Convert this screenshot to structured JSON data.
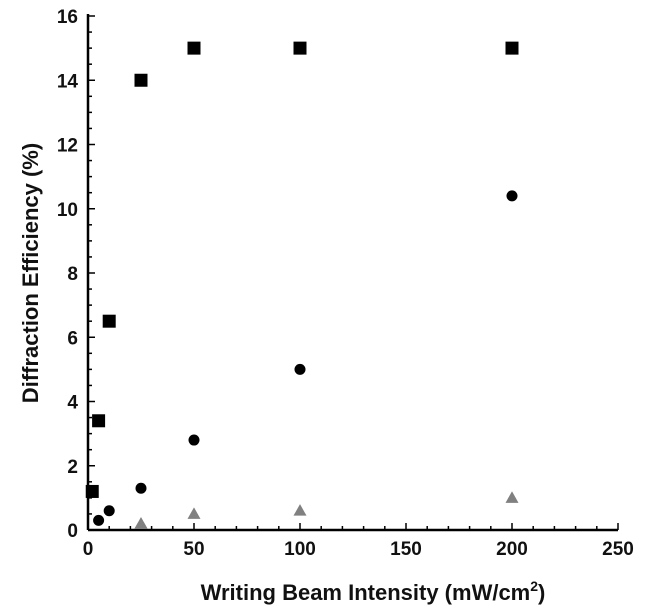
{
  "chart_data": {
    "type": "scatter",
    "xlabel": "Writing Beam Intensity (mW/cm",
    "xlabel_sup": "2",
    "xlabel_close": ")",
    "ylabel": "Diffraction Efficiency (%)",
    "xlim": [
      0,
      250
    ],
    "ylim": [
      0,
      16
    ],
    "x_ticks": [
      "0",
      "50",
      "100",
      "150",
      "200",
      "250"
    ],
    "y_ticks": [
      "0",
      "2",
      "4",
      "6",
      "8",
      "10",
      "12",
      "14",
      "16"
    ],
    "grid": false,
    "legend": "none",
    "series": [
      {
        "marker": "square",
        "color": "#000000",
        "points": [
          [
            2,
            1.2
          ],
          [
            5,
            3.4
          ],
          [
            10,
            6.5
          ],
          [
            25,
            14.0
          ],
          [
            50,
            15.0
          ],
          [
            100,
            15.0
          ],
          [
            200,
            15.0
          ]
        ]
      },
      {
        "marker": "circle",
        "color": "#000000",
        "points": [
          [
            5,
            0.3
          ],
          [
            10,
            0.6
          ],
          [
            25,
            1.3
          ],
          [
            50,
            2.8
          ],
          [
            100,
            5.0
          ],
          [
            200,
            10.4
          ]
        ]
      },
      {
        "marker": "triangle",
        "color": "#808080",
        "points": [
          [
            25,
            0.2
          ],
          [
            50,
            0.5
          ],
          [
            100,
            0.6
          ],
          [
            200,
            1.0
          ]
        ]
      }
    ]
  }
}
